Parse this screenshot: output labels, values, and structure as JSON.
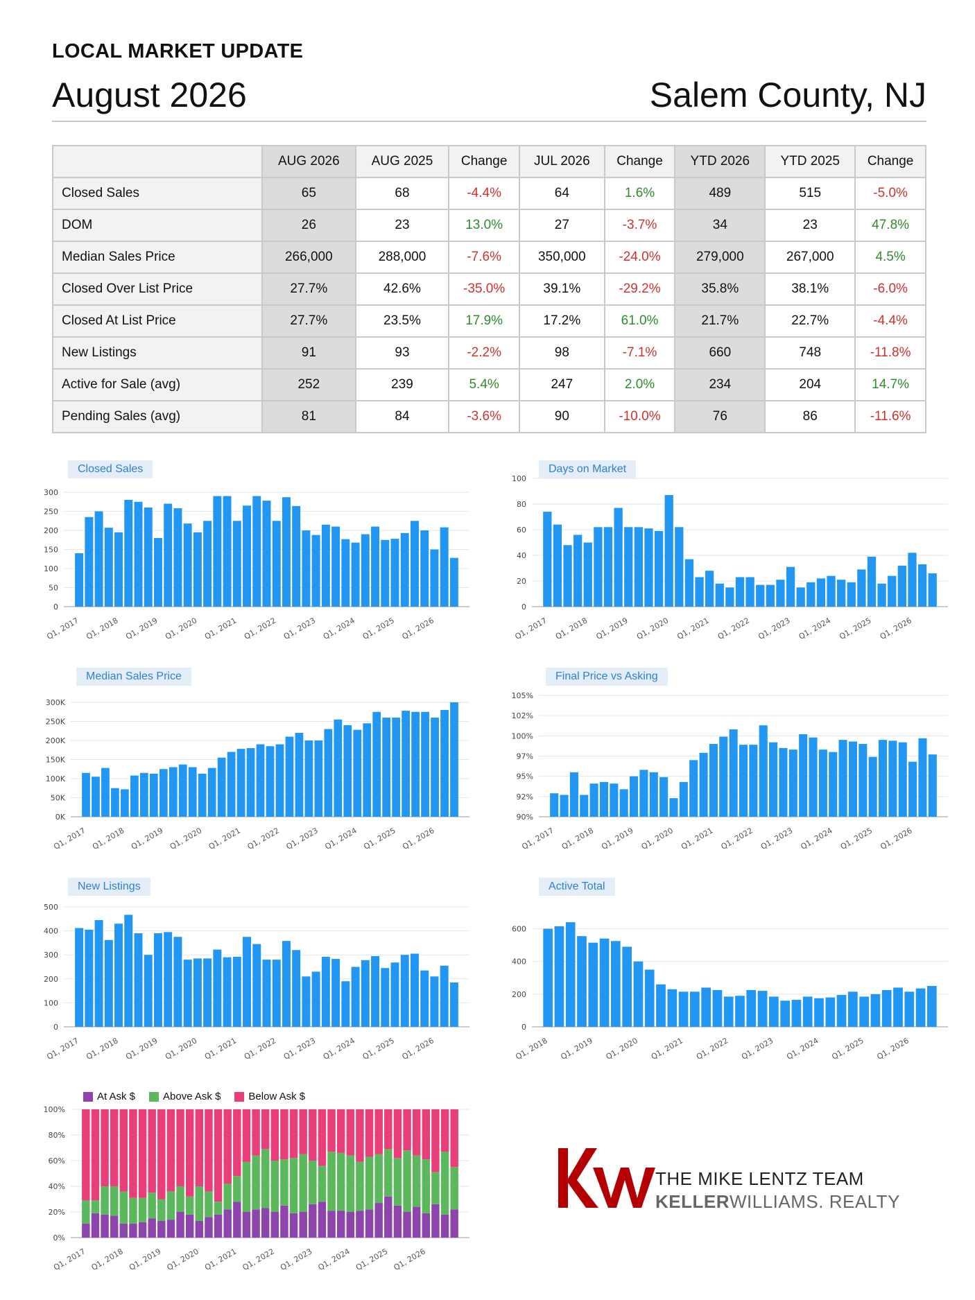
{
  "header": {
    "kicker": "LOCAL MARKET UPDATE",
    "month": "August 2026",
    "county": "Salem County, NJ"
  },
  "table": {
    "columns": [
      "AUG 2026",
      "AUG 2025",
      "Change",
      "JUL 2026",
      "Change",
      "YTD 2026",
      "YTD 2025",
      "Change"
    ],
    "rows": [
      {
        "label": "Closed Sales",
        "v": [
          "65",
          "68",
          "-4.4%",
          "64",
          "1.6%",
          "489",
          "515",
          "-5.0%"
        ]
      },
      {
        "label": "DOM",
        "v": [
          "26",
          "23",
          "13.0%",
          "27",
          "-3.7%",
          "34",
          "23",
          "47.8%"
        ]
      },
      {
        "label": "Median Sales Price",
        "v": [
          "266,000",
          "288,000",
          "-7.6%",
          "350,000",
          "-24.0%",
          "279,000",
          "267,000",
          "4.5%"
        ]
      },
      {
        "label": "Closed Over List Price",
        "v": [
          "27.7%",
          "42.6%",
          "-35.0%",
          "39.1%",
          "-29.2%",
          "35.8%",
          "38.1%",
          "-6.0%"
        ]
      },
      {
        "label": "Closed At List Price",
        "v": [
          "27.7%",
          "23.5%",
          "17.9%",
          "17.2%",
          "61.0%",
          "21.7%",
          "22.7%",
          "-4.4%"
        ]
      },
      {
        "label": "New Listings",
        "v": [
          "91",
          "93",
          "-2.2%",
          "98",
          "-7.1%",
          "660",
          "748",
          "-11.8%"
        ]
      },
      {
        "label": "Active for Sale (avg)",
        "v": [
          "252",
          "239",
          "5.4%",
          "247",
          "2.0%",
          "234",
          "204",
          "14.7%"
        ]
      },
      {
        "label": "Pending Sales (avg)",
        "v": [
          "81",
          "84",
          "-3.6%",
          "90",
          "-10.0%",
          "76",
          "86",
          "-11.6%"
        ]
      }
    ]
  },
  "colors": {
    "bar": "#2196f3",
    "at_ask": "#8e44ad",
    "above_ask": "#5cb85c",
    "below_ask": "#e83e7a",
    "neg": "#d0312d",
    "pos": "#2e8b2e",
    "kw_red": "#b40000"
  },
  "chart_data": [
    {
      "id": "closed_sales",
      "type": "bar",
      "title": "Closed Sales",
      "ylim": [
        0,
        300
      ],
      "yticks": [
        "0",
        "50",
        "100",
        "150",
        "200",
        "250",
        "300"
      ],
      "xticks": [
        "Q1, 2017",
        "Q1, 2018",
        "Q1, 2019",
        "Q1, 2020",
        "Q1, 2021",
        "Q1, 2022",
        "Q1, 2023",
        "Q1, 2024",
        "Q1, 2025",
        "Q1, 2026"
      ],
      "values": [
        140,
        235,
        250,
        207,
        195,
        280,
        275,
        260,
        180,
        270,
        258,
        218,
        195,
        225,
        290,
        290,
        225,
        265,
        290,
        278,
        225,
        287,
        264,
        200,
        188,
        215,
        210,
        177,
        168,
        190,
        210,
        175,
        178,
        193,
        225,
        200,
        150,
        208,
        128
      ]
    },
    {
      "id": "dom",
      "type": "bar",
      "title": "Days on Market",
      "ylim": [
        0,
        100
      ],
      "yticks": [
        "0",
        "20",
        "40",
        "60",
        "80",
        "100"
      ],
      "xticks": [
        "Q1, 2017",
        "Q1, 2018",
        "Q1, 2019",
        "Q1, 2020",
        "Q1, 2021",
        "Q1, 2022",
        "Q1, 2023",
        "Q1, 2024",
        "Q1, 2025",
        "Q1, 2026"
      ],
      "values": [
        74,
        64,
        48,
        56,
        50,
        62,
        62,
        77,
        62,
        62,
        61,
        59,
        87,
        62,
        37,
        23,
        28,
        18,
        15,
        23,
        23,
        17,
        17,
        21,
        31,
        15,
        19,
        22,
        24,
        21,
        19,
        29,
        39,
        18,
        24,
        32,
        42,
        33,
        26
      ]
    },
    {
      "id": "median_price",
      "type": "bar",
      "title": "Median Sales Price",
      "ylim": [
        0,
        300000
      ],
      "yticks": [
        "0K",
        "50K",
        "100K",
        "150K",
        "200K",
        "250K",
        "300K"
      ],
      "xticks": [
        "Q1, 2017",
        "Q1, 2018",
        "Q1, 2019",
        "Q1, 2020",
        "Q1, 2021",
        "Q1, 2022",
        "Q1, 2023",
        "Q1, 2024",
        "Q1, 2025",
        "Q1, 2026"
      ],
      "values": [
        115000,
        105000,
        128000,
        75000,
        72000,
        108000,
        115000,
        113000,
        125000,
        130000,
        137000,
        130000,
        113000,
        128000,
        155000,
        170000,
        178000,
        180000,
        190000,
        185000,
        190000,
        210000,
        220000,
        200000,
        200000,
        230000,
        255000,
        240000,
        228000,
        245000,
        275000,
        260000,
        260000,
        278000,
        275000,
        275000,
        260000,
        280000,
        300000
      ]
    },
    {
      "id": "final_vs_asking",
      "type": "bar",
      "title": "Final Price vs Asking",
      "ylim": [
        90,
        105
      ],
      "yticks": [
        "90%",
        "92%",
        "95%",
        "97%",
        "100%",
        "102%",
        "105%"
      ],
      "xticks": [
        "Q1, 2017",
        "Q1, 2018",
        "Q1, 2019",
        "Q1, 2020",
        "Q1, 2021",
        "Q1, 2022",
        "Q1, 2023",
        "Q1, 2024",
        "Q1, 2025",
        "Q1, 2026"
      ],
      "values": [
        92.9,
        92.7,
        95.5,
        92.7,
        94.1,
        94.3,
        94.1,
        93.4,
        95.0,
        95.8,
        95.5,
        94.9,
        92.3,
        94.3,
        97.0,
        97.9,
        99.0,
        99.9,
        100.8,
        98.9,
        98.9,
        101.3,
        99.2,
        98.5,
        98.3,
        100.2,
        99.8,
        98.3,
        98.0,
        99.5,
        99.3,
        99.0,
        97.4,
        99.5,
        99.4,
        99.2,
        96.8,
        99.7,
        97.7
      ]
    },
    {
      "id": "new_listings",
      "type": "bar",
      "title": "New Listings",
      "ylim": [
        0,
        500
      ],
      "yticks": [
        "0",
        "100",
        "200",
        "300",
        "400",
        "500"
      ],
      "xticks": [
        "Q1, 2017",
        "Q1, 2018",
        "Q1, 2019",
        "Q1, 2020",
        "Q1, 2021",
        "Q1, 2022",
        "Q1, 2023",
        "Q1, 2024",
        "Q1, 2025",
        "Q1, 2026"
      ],
      "values": [
        412,
        405,
        445,
        362,
        430,
        467,
        390,
        300,
        390,
        395,
        375,
        280,
        285,
        285,
        322,
        290,
        292,
        375,
        345,
        280,
        280,
        358,
        320,
        210,
        230,
        292,
        283,
        190,
        250,
        278,
        295,
        245,
        268,
        300,
        305,
        235,
        210,
        255,
        185
      ]
    },
    {
      "id": "active_total",
      "type": "bar",
      "title": "Active Total",
      "ylim": [
        0,
        700
      ],
      "yticks": [
        "0",
        "200",
        "400",
        "600"
      ],
      "xticks": [
        "Q1, 2018",
        "Q1, 2019",
        "Q1, 2020",
        "Q1, 2021",
        "Q1, 2022",
        "Q1, 2023",
        "Q1, 2024",
        "Q1, 2025",
        "Q1, 2026"
      ],
      "values": [
        600,
        615,
        640,
        555,
        515,
        540,
        525,
        490,
        400,
        350,
        260,
        230,
        215,
        215,
        240,
        225,
        185,
        190,
        225,
        220,
        185,
        160,
        165,
        185,
        175,
        180,
        195,
        215,
        185,
        200,
        225,
        240,
        215,
        235,
        250
      ]
    },
    {
      "id": "ask_breakdown",
      "type": "stacked-bar",
      "ylim": [
        0,
        100
      ],
      "yticks": [
        "0%",
        "20%",
        "40%",
        "60%",
        "80%",
        "100%"
      ],
      "xticks": [
        "Q1, 2017",
        "Q1, 2018",
        "Q1, 2019",
        "Q1, 2020",
        "Q1, 2021",
        "Q1, 2022",
        "Q1, 2023",
        "Q1, 2024",
        "Q1, 2025",
        "Q1, 2026"
      ],
      "series": [
        {
          "name": "At Ask $",
          "values": [
            11,
            19,
            18,
            17,
            11,
            11,
            12,
            15,
            13,
            14,
            20,
            18,
            13,
            16,
            18,
            22,
            28,
            20,
            22,
            23,
            20,
            25,
            19,
            20,
            26,
            28,
            21,
            21,
            20,
            21,
            22,
            27,
            32,
            25,
            20,
            24,
            19,
            26,
            18,
            22
          ]
        },
        {
          "name": "Above Ask $",
          "values": [
            18,
            10,
            22,
            23,
            25,
            20,
            19,
            20,
            17,
            22,
            20,
            14,
            27,
            20,
            10,
            20,
            20,
            39,
            42,
            46,
            40,
            36,
            43,
            45,
            34,
            28,
            46,
            45,
            44,
            38,
            41,
            38,
            37,
            37,
            48,
            40,
            42,
            25,
            49,
            33
          ]
        },
        {
          "name": "Below Ask $",
          "values": [
            71,
            71,
            60,
            60,
            64,
            69,
            69,
            65,
            70,
            64,
            60,
            68,
            60,
            64,
            72,
            58,
            52,
            41,
            36,
            31,
            40,
            39,
            38,
            35,
            40,
            44,
            33,
            34,
            36,
            41,
            37,
            35,
            31,
            38,
            32,
            36,
            39,
            49,
            33,
            45
          ]
        }
      ]
    }
  ],
  "logo": {
    "mark": "kw",
    "line1": "THE MIKE LENTZ TEAM",
    "line2_bold": "KELLER",
    "line2_rest": "WILLIAMS. REALTY"
  }
}
